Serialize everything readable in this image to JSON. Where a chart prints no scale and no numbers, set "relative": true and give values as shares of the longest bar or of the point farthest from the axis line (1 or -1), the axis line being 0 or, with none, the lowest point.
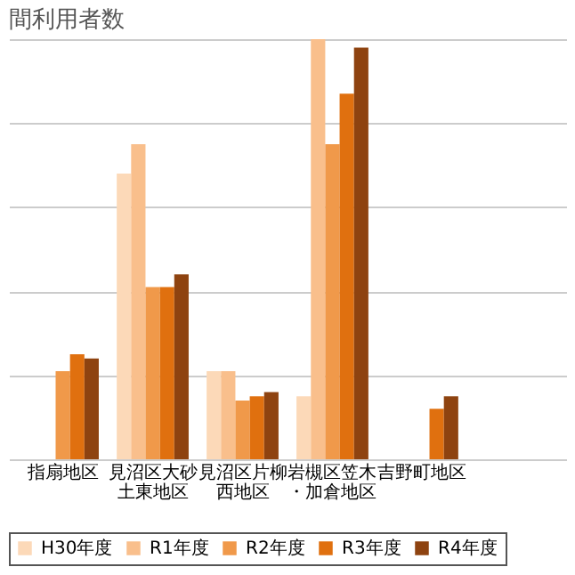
{
  "chart_data": {
    "type": "bar",
    "title": "間利用者数",
    "relative": true,
    "grid": "y",
    "legend": "bottom",
    "categories": [
      "指扇地区",
      "見沼区大砂土東地区",
      "見沼区片柳西地区",
      "岩槻区笠木・加倉地区",
      "吉野町地区",
      null
    ],
    "series": [
      {
        "name": "H30年度",
        "color": "#fcd9b8",
        "values": [
          null,
          0.68,
          0.21,
          0.15,
          null,
          null
        ]
      },
      {
        "name": "R1年度",
        "color": "#f9bf8c",
        "values": [
          null,
          0.75,
          0.21,
          1,
          null,
          null
        ]
      },
      {
        "name": "R2年度",
        "color": "#f0994a",
        "values": [
          0.21,
          0.41,
          0.14,
          0.75,
          null,
          null
        ]
      },
      {
        "name": "R3年度",
        "color": "#e0700f",
        "values": [
          0.25,
          0.41,
          0.15,
          0.87,
          0.12,
          null
        ]
      },
      {
        "name": "R4年度",
        "color": "#8e4310",
        "values": [
          0.24,
          0.44,
          0.16,
          0.98,
          0.15,
          null
        ]
      }
    ]
  }
}
